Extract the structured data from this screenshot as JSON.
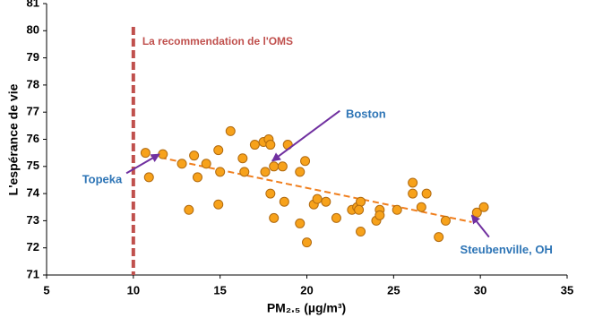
{
  "chart_data": {
    "type": "scatter",
    "x_label": "PM₂.₅ (µg/m³)",
    "y_label": "L'espérance de vie",
    "xlim": [
      5,
      35
    ],
    "xticks": [
      5,
      10,
      15,
      20,
      25,
      30,
      35
    ],
    "ylim": [
      71,
      81
    ],
    "yticks": [
      71,
      72,
      73,
      74,
      75,
      76,
      77,
      78,
      79,
      80,
      81
    ],
    "grid": false,
    "color": "#f7a21b",
    "x": [
      10.7,
      10.9,
      11.7,
      12.8,
      13.2,
      13.5,
      13.7,
      14.2,
      14.9,
      15.0,
      14.9,
      15.6,
      16.3,
      16.4,
      17.0,
      17.5,
      17.6,
      17.8,
      17.9,
      17.9,
      18.1,
      18.1,
      18.6,
      18.9,
      18.7,
      19.6,
      19.9,
      19.6,
      20.0,
      20.4,
      20.6,
      21.1,
      21.7,
      22.6,
      22.9,
      23.1,
      23.1,
      23.0,
      24.0,
      24.2,
      24.2,
      25.2,
      26.1,
      26.1,
      26.6,
      26.9,
      27.6,
      28.0,
      29.8,
      30.2
    ],
    "values": [
      75.5,
      74.6,
      75.45,
      75.1,
      73.4,
      75.4,
      74.6,
      75.1,
      75.6,
      74.8,
      73.6,
      76.3,
      75.3,
      74.8,
      75.8,
      75.9,
      74.8,
      76.0,
      75.8,
      74.0,
      73.1,
      75.0,
      75.0,
      75.8,
      73.7,
      74.8,
      75.2,
      72.9,
      72.2,
      73.6,
      73.8,
      73.7,
      73.1,
      73.4,
      73.5,
      73.7,
      72.6,
      73.4,
      73.0,
      73.4,
      73.2,
      73.4,
      74.4,
      74.0,
      73.5,
      74.0,
      72.4,
      73.0,
      73.3,
      73.5
    ],
    "trendline": {
      "x": [
        11,
        29.5
      ],
      "y": [
        75.4,
        72.95
      ],
      "color": "#f07f1e"
    },
    "reference_line": {
      "x": 10,
      "label": "La recommendation de l'OMS",
      "color": "#c0504d"
    },
    "annotations": [
      {
        "text": "Topeka",
        "point": [
          11.5,
          75.45
        ],
        "text_at": [
          8.2,
          74.5
        ],
        "arrow_from": [
          9.6,
          74.75
        ]
      },
      {
        "text": "Boston",
        "point": [
          18.0,
          75.2
        ],
        "text_at": [
          23.4,
          76.9
        ],
        "arrow_from": [
          21.9,
          77.05
        ]
      },
      {
        "text": "Steubenville, OH",
        "point": [
          29.5,
          73.2
        ],
        "text_at": [
          31.5,
          71.9
        ],
        "arrow_from": [
          30.5,
          72.4
        ]
      }
    ],
    "annotation_color": "#2e75b6",
    "arrow_color": "#7030a0"
  }
}
